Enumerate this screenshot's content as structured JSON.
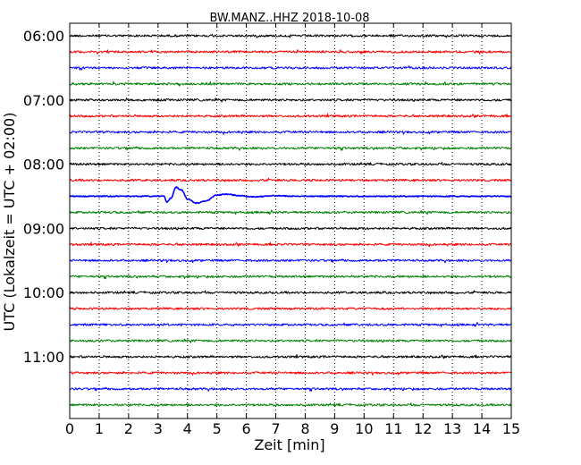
{
  "chart_data": {
    "type": "line",
    "title": "BW.MANZ..HHZ 2018-10-08",
    "xlabel": "Zeit  [min]",
    "ylabel": "UTC (Lokalzeit = UTC + 02:00)",
    "xlim": [
      0,
      15
    ],
    "x_ticks": [
      0,
      1,
      2,
      3,
      4,
      5,
      6,
      7,
      8,
      9,
      10,
      11,
      12,
      13,
      14,
      15
    ],
    "y_tick_labels": [
      "06:00",
      "07:00",
      "08:00",
      "09:00",
      "10:00",
      "11:00"
    ],
    "trace_start_times": [
      "06:00",
      "06:15",
      "06:30",
      "06:45",
      "07:00",
      "07:15",
      "07:30",
      "07:45",
      "08:00",
      "08:15",
      "08:30",
      "08:45",
      "09:00",
      "09:15",
      "09:30",
      "09:45",
      "10:00",
      "10:15",
      "10:30",
      "10:45",
      "11:00",
      "11:15",
      "11:30",
      "11:45"
    ],
    "colors": [
      "#000000",
      "#ff0000",
      "#0000ff",
      "#008000"
    ],
    "grid": "vertical dotted",
    "event": {
      "trace_start_time": "08:30",
      "onset_min": 3.2,
      "waveform": [
        [
          3.1,
          0
        ],
        [
          3.2,
          0
        ],
        [
          3.3,
          -0.55
        ],
        [
          3.45,
          -0.15
        ],
        [
          3.6,
          0.85
        ],
        [
          3.8,
          0.6
        ],
        [
          4.0,
          -0.25
        ],
        [
          4.3,
          -0.65
        ],
        [
          4.6,
          -0.45
        ],
        [
          5.0,
          0.1
        ],
        [
          5.3,
          0.2
        ],
        [
          5.8,
          0.05
        ],
        [
          6.2,
          -0.05
        ],
        [
          7.0,
          0.05
        ],
        [
          7.5,
          0.02
        ],
        [
          8.5,
          0.0
        ]
      ]
    }
  }
}
